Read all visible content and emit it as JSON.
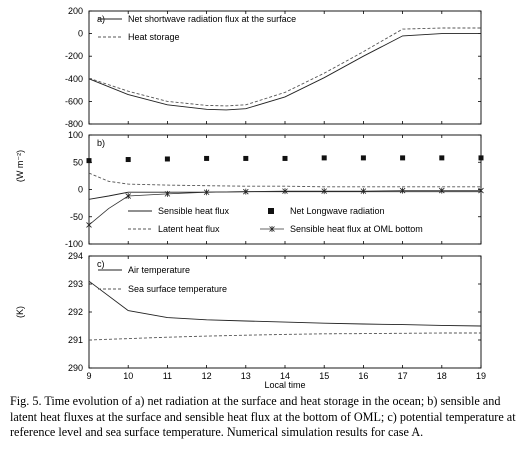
{
  "caption": "Fig. 5. Time evolution of a) net radiation at the surface and heat storage in the ocean; b) sensible and latent heat fluxes at the surface and sensible heat flux at the bottom of OML; c) potential temperature at reference level and sea surface temperature. Numerical simulation results for case A.",
  "shared_ylabel": "(W m⁻²)",
  "chart_data": [
    {
      "panel": "a)",
      "type": "line",
      "xlim": [
        9,
        19
      ],
      "ylim": [
        -800,
        200
      ],
      "yticks": [
        "200",
        "0",
        "-200",
        "-400",
        "-600",
        "-800"
      ],
      "series": [
        {
          "name": "Net shortwave radiation flux at the surface",
          "style": "solid",
          "x": [
            9,
            10,
            11,
            12,
            12.5,
            13,
            14,
            15,
            16,
            17,
            18,
            19
          ],
          "y": [
            -400,
            -540,
            -630,
            -670,
            -675,
            -665,
            -560,
            -390,
            -200,
            -20,
            0,
            0
          ]
        },
        {
          "name": "Heat storage",
          "style": "dashed",
          "x": [
            9,
            10,
            11,
            12,
            12.5,
            13,
            14,
            15,
            16,
            17,
            18,
            19
          ],
          "y": [
            -395,
            -510,
            -600,
            -635,
            -640,
            -630,
            -520,
            -350,
            -160,
            40,
            50,
            50
          ]
        }
      ]
    },
    {
      "panel": "b)",
      "type": "line",
      "xlim": [
        9,
        19
      ],
      "ylim": [
        -100,
        100
      ],
      "yticks": [
        "100",
        "50",
        "0",
        "-50",
        "-100"
      ],
      "series": [
        {
          "name": "Sensible heat flux",
          "style": "solid",
          "x": [
            9,
            9.5,
            10,
            11,
            12,
            13,
            14,
            15,
            16,
            17,
            18,
            19
          ],
          "y": [
            -18,
            -12,
            -5,
            -5,
            -5,
            -4,
            -4,
            -4,
            -4,
            -4,
            -4,
            -4
          ]
        },
        {
          "name": "Latent heat flux",
          "style": "dashed",
          "x": [
            9,
            9.5,
            10,
            11,
            12,
            13,
            14,
            15,
            16,
            17,
            18,
            19
          ],
          "y": [
            30,
            15,
            10,
            8,
            7,
            6,
            6,
            5,
            5,
            5,
            5,
            5
          ]
        },
        {
          "name": "Net  Longwave radiation",
          "style": "marker-square",
          "x": [
            9,
            10,
            11,
            12,
            13,
            14,
            15,
            16,
            17,
            18,
            19
          ],
          "y": [
            53,
            55,
            56,
            57,
            57,
            57,
            58,
            58,
            58,
            58,
            58
          ]
        },
        {
          "name": "Sensible heat flux at OML bottom",
          "style": "star",
          "x": [
            9,
            9.5,
            10,
            11,
            12,
            13,
            14,
            15,
            16,
            17,
            18,
            19
          ],
          "y": [
            -65,
            -35,
            -12,
            -8,
            -5,
            -4,
            -3,
            -3,
            -3,
            -2,
            -2,
            -2
          ]
        }
      ]
    },
    {
      "panel": "c)",
      "type": "line",
      "xlim": [
        9,
        19
      ],
      "ylim": [
        290,
        294
      ],
      "yticks": [
        "294",
        "293",
        "292",
        "291",
        "290"
      ],
      "xticks": [
        "9",
        "10",
        "11",
        "12",
        "13",
        "14",
        "15",
        "16",
        "17",
        "18",
        "19"
      ],
      "ylabel": "(K)",
      "xlabel": "Local time",
      "series": [
        {
          "name": "Air temperature",
          "style": "solid",
          "x": [
            9,
            10,
            11,
            12,
            13,
            14,
            15,
            16,
            17,
            18,
            19
          ],
          "y": [
            293.1,
            292.05,
            291.8,
            291.72,
            291.68,
            291.64,
            291.6,
            291.57,
            291.55,
            291.52,
            291.5
          ]
        },
        {
          "name": "Sea surface temperature",
          "style": "dashed",
          "x": [
            9,
            10,
            11,
            12,
            13,
            14,
            15,
            16,
            17,
            18,
            19
          ],
          "y": [
            291.0,
            291.05,
            291.1,
            291.14,
            291.17,
            291.2,
            291.22,
            291.23,
            291.24,
            291.25,
            291.25
          ]
        }
      ]
    }
  ]
}
